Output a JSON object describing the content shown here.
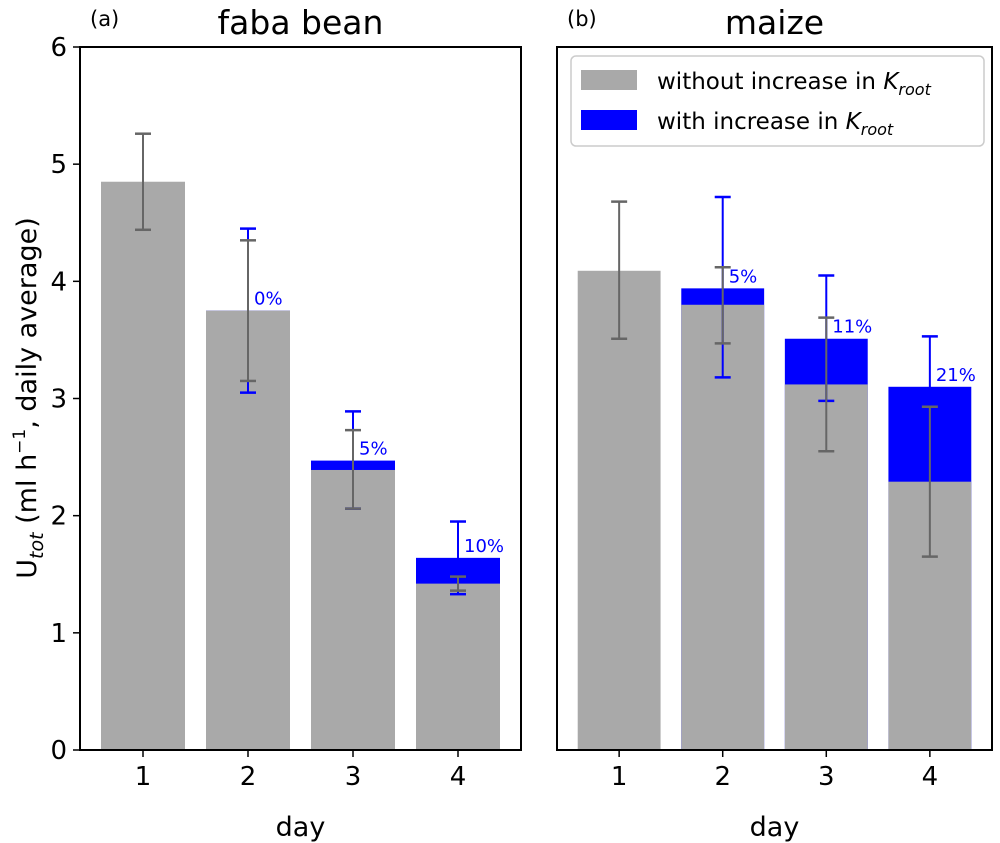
{
  "figure": {
    "ylabel": "U_tot (ml h⁻¹, daily average)",
    "ylabel_main": "U",
    "ylabel_sub": "tot",
    "ylabel_rest1": " (ml h",
    "ylabel_sup": "−1",
    "ylabel_rest2": ", daily average)",
    "legend": {
      "without": "without increase in K_root",
      "with": "with increase in K_root",
      "without_prefix": "without increase in ",
      "with_prefix": "with increase in ",
      "k_symbol": "K",
      "k_sub": "root",
      "without_color": "#a9a9a9",
      "with_color": "#0000ff"
    }
  },
  "chart_data": [
    {
      "type": "bar",
      "panel_label": "(a)",
      "title": "faba bean",
      "xlabel": "day",
      "ylim": [
        0,
        6
      ],
      "yticks": [
        "0",
        "1",
        "2",
        "3",
        "4",
        "5",
        "6"
      ],
      "categories": [
        "1",
        "2",
        "3",
        "4"
      ],
      "series": [
        {
          "name": "without increase in K_root",
          "color": "#a9a9a9",
          "values": [
            4.85,
            3.75,
            2.39,
            1.42
          ],
          "err_low": [
            4.44,
            3.15,
            2.06,
            1.36
          ],
          "err_high": [
            5.26,
            4.35,
            2.73,
            1.48
          ]
        },
        {
          "name": "with increase in K_root",
          "color": "#0000ff",
          "values": [
            null,
            3.75,
            2.47,
            1.64
          ],
          "err_low": [
            null,
            3.05,
            2.06,
            1.33
          ],
          "err_high": [
            null,
            4.45,
            2.89,
            1.95
          ]
        }
      ],
      "annotations": [
        "",
        "0%",
        "5%",
        "10%"
      ],
      "legend": false,
      "show_yaxis": true
    },
    {
      "type": "bar",
      "panel_label": "(b)",
      "title": "maize",
      "xlabel": "day",
      "ylim": [
        0,
        6
      ],
      "categories": [
        "1",
        "2",
        "3",
        "4"
      ],
      "series": [
        {
          "name": "without increase in K_root",
          "color": "#a9a9a9",
          "values": [
            4.09,
            3.8,
            3.12,
            2.29
          ],
          "err_low": [
            3.51,
            3.47,
            2.55,
            1.65
          ],
          "err_high": [
            4.68,
            4.12,
            3.69,
            2.93
          ]
        },
        {
          "name": "with increase in K_root",
          "color": "#0000ff",
          "values": [
            null,
            3.94,
            3.51,
            3.1
          ],
          "err_low": [
            null,
            3.18,
            2.98,
            2.67
          ],
          "err_high": [
            null,
            4.72,
            4.05,
            3.53
          ]
        }
      ],
      "annotations": [
        "",
        "5%",
        "11%",
        "21%"
      ],
      "legend": "top-right",
      "show_yaxis": false
    }
  ]
}
